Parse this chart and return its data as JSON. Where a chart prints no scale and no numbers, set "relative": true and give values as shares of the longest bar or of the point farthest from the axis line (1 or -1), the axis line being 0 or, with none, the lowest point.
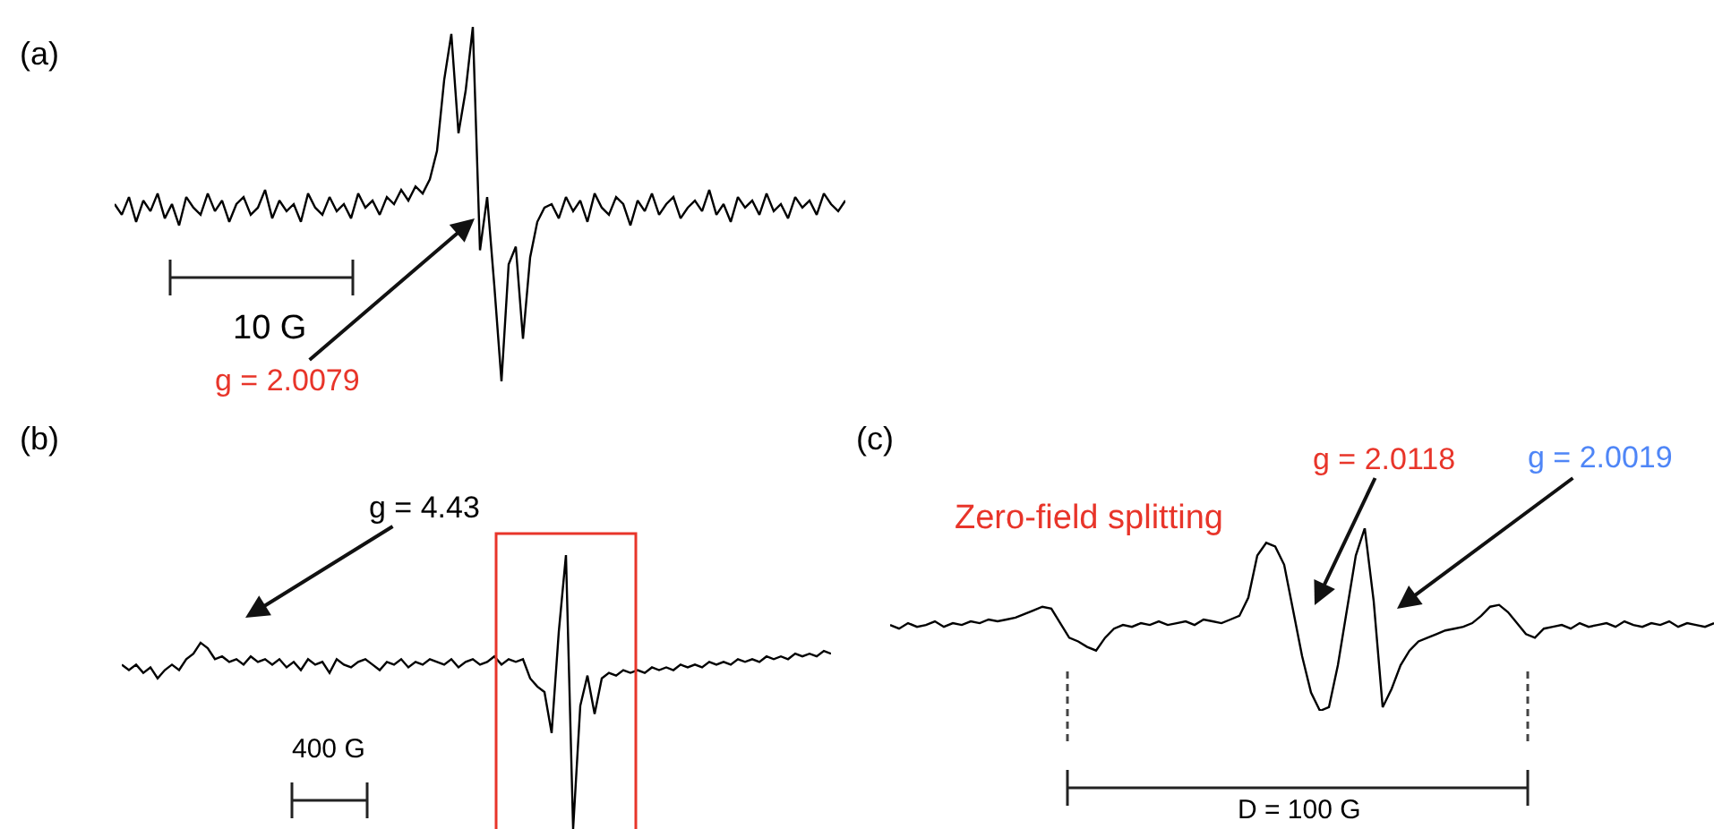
{
  "chart_data": [
    {
      "type": "line",
      "title": "(a)",
      "relative": true,
      "categories": [
        null,
        null,
        null,
        null,
        null,
        null,
        null,
        null,
        null,
        null,
        null,
        null,
        null,
        null,
        null,
        null,
        null,
        null,
        null,
        null,
        null,
        null,
        null,
        null,
        null,
        null,
        null,
        null,
        null,
        null,
        null,
        null,
        null,
        null,
        null,
        null,
        null,
        null,
        null,
        null,
        null,
        null,
        null,
        null,
        null,
        null,
        null,
        null,
        null,
        null,
        null,
        null,
        null,
        null,
        null,
        null,
        null,
        null,
        null,
        null,
        null,
        null,
        null,
        null,
        null,
        null,
        null,
        null,
        null,
        null,
        null,
        null,
        null,
        null,
        null,
        null,
        null,
        null,
        null,
        null,
        null,
        null,
        null,
        null,
        null,
        null,
        null,
        null,
        null,
        null,
        null,
        null,
        null,
        null,
        null,
        null,
        null,
        null,
        null,
        null,
        null,
        null,
        null
      ],
      "series": [
        {
          "color": "#000000",
          "values": [
            0.5,
            0.47,
            0.52,
            0.45,
            0.51,
            0.48,
            0.53,
            0.46,
            0.5,
            0.44,
            0.52,
            0.49,
            0.47,
            0.53,
            0.48,
            0.51,
            0.45,
            0.5,
            0.52,
            0.47,
            0.49,
            0.54,
            0.46,
            0.51,
            0.48,
            0.5,
            0.45,
            0.53,
            0.49,
            0.47,
            0.52,
            0.48,
            0.5,
            0.46,
            0.53,
            0.49,
            0.51,
            0.47,
            0.52,
            0.5,
            0.54,
            0.51,
            0.55,
            0.53,
            0.57,
            0.65,
            0.85,
            0.98,
            0.7,
            0.82,
            1,
            0.37,
            0.52,
            0.27,
            0,
            0.33,
            0.38,
            0.12,
            0.35,
            0.45,
            0.49,
            0.5,
            0.46,
            0.52,
            0.48,
            0.51,
            0.45,
            0.53,
            0.49,
            0.47,
            0.52,
            0.5,
            0.44,
            0.51,
            0.48,
            0.53,
            0.47,
            0.5,
            0.52,
            0.46,
            0.49,
            0.51,
            0.48,
            0.54,
            0.47,
            0.5,
            0.45,
            0.52,
            0.49,
            0.51,
            0.47,
            0.53,
            0.48,
            0.5,
            0.46,
            0.52,
            0.49,
            0.51,
            0.47,
            0.53,
            0.5,
            0.48,
            0.51
          ]
        }
      ],
      "annotations": [
        "10 G",
        "g = 2.0079"
      ]
    },
    {
      "type": "line",
      "title": "(b)",
      "relative": true,
      "categories": [
        null,
        null,
        null,
        null,
        null,
        null,
        null,
        null,
        null,
        null,
        null,
        null,
        null,
        null,
        null,
        null,
        null,
        null,
        null,
        null,
        null,
        null,
        null,
        null,
        null,
        null,
        null,
        null,
        null,
        null,
        null,
        null,
        null,
        null,
        null,
        null,
        null,
        null,
        null,
        null,
        null,
        null,
        null,
        null,
        null,
        null,
        null,
        null,
        null,
        null,
        null,
        null,
        null,
        null,
        null,
        null,
        null,
        null,
        null,
        null,
        null,
        null,
        null,
        null,
        null,
        null,
        null,
        null,
        null,
        null,
        null,
        null,
        null,
        null,
        null,
        null,
        null,
        null,
        null,
        null,
        null,
        null,
        null,
        null,
        null,
        null,
        null,
        null,
        null,
        null,
        null,
        null,
        null,
        null,
        null,
        null,
        null,
        null,
        null,
        null
      ],
      "series": [
        {
          "color": "#000000",
          "values": [
            0.6,
            0.58,
            0.6,
            0.57,
            0.59,
            0.55,
            0.58,
            0.6,
            0.58,
            0.62,
            0.64,
            0.68,
            0.66,
            0.62,
            0.63,
            0.61,
            0.62,
            0.6,
            0.63,
            0.61,
            0.62,
            0.6,
            0.62,
            0.59,
            0.61,
            0.58,
            0.62,
            0.6,
            0.61,
            0.57,
            0.62,
            0.6,
            0.59,
            0.61,
            0.62,
            0.6,
            0.58,
            0.61,
            0.6,
            0.62,
            0.59,
            0.61,
            0.6,
            0.62,
            0.61,
            0.6,
            0.62,
            0.59,
            0.61,
            0.62,
            0.6,
            0.61,
            0.63,
            0.6,
            0.62,
            0.61,
            0.62,
            0.55,
            0.52,
            0.5,
            0.35,
            0.72,
            1,
            0,
            0.45,
            0.56,
            0.42,
            0.55,
            0.57,
            0.56,
            0.58,
            0.57,
            0.58,
            0.57,
            0.59,
            0.58,
            0.59,
            0.58,
            0.6,
            0.59,
            0.6,
            0.59,
            0.61,
            0.6,
            0.61,
            0.6,
            0.62,
            0.61,
            0.62,
            0.61,
            0.63,
            0.62,
            0.63,
            0.62,
            0.64,
            0.63,
            0.64,
            0.63,
            0.65,
            0.64
          ]
        }
      ],
      "annotations": [
        "g = 4.43",
        "400 G"
      ]
    },
    {
      "type": "line",
      "title": "(c)",
      "relative": true,
      "categories": [
        null,
        null,
        null,
        null,
        null,
        null,
        null,
        null,
        null,
        null,
        null,
        null,
        null,
        null,
        null,
        null,
        null,
        null,
        null,
        null,
        null,
        null,
        null,
        null,
        null,
        null,
        null,
        null,
        null,
        null,
        null,
        null,
        null,
        null,
        null,
        null,
        null,
        null,
        null,
        null,
        null,
        null,
        null,
        null,
        null,
        null,
        null,
        null,
        null,
        null,
        null,
        null,
        null,
        null,
        null,
        null,
        null,
        null,
        null,
        null,
        null,
        null,
        null,
        null,
        null,
        null,
        null,
        null,
        null,
        null,
        null,
        null,
        null,
        null,
        null,
        null,
        null,
        null,
        null,
        null,
        null,
        null,
        null,
        null,
        null,
        null,
        null,
        null,
        null,
        null,
        null,
        null,
        null
      ],
      "series": [
        {
          "color": "#000000",
          "values": [
            0.47,
            0.45,
            0.48,
            0.46,
            0.47,
            0.49,
            0.46,
            0.48,
            0.47,
            0.49,
            0.48,
            0.5,
            0.49,
            0.5,
            0.51,
            0.53,
            0.55,
            0.57,
            0.56,
            0.48,
            0.4,
            0.38,
            0.35,
            0.33,
            0.4,
            0.45,
            0.47,
            0.46,
            0.48,
            0.47,
            0.49,
            0.47,
            0.48,
            0.49,
            0.47,
            0.5,
            0.49,
            0.48,
            0.5,
            0.52,
            0.62,
            0.85,
            0.92,
            0.9,
            0.8,
            0.55,
            0.3,
            0.1,
            0,
            0.02,
            0.25,
            0.55,
            0.85,
            1,
            0.6,
            0.02,
            0.12,
            0.25,
            0.33,
            0.38,
            0.4,
            0.42,
            0.44,
            0.45,
            0.46,
            0.48,
            0.52,
            0.57,
            0.58,
            0.54,
            0.48,
            0.42,
            0.4,
            0.45,
            0.46,
            0.47,
            0.45,
            0.48,
            0.46,
            0.47,
            0.48,
            0.46,
            0.49,
            0.47,
            0.46,
            0.48,
            0.47,
            0.49,
            0.46,
            0.48,
            0.47,
            0.46,
            0.48
          ]
        }
      ],
      "annotations": [
        "Zero-field splitting",
        "g = 2.0118",
        "g = 2.0019",
        "D = 100 G"
      ]
    }
  ]
}
